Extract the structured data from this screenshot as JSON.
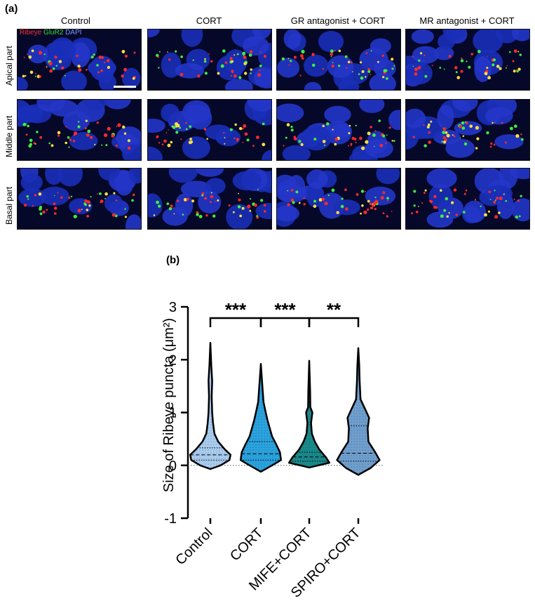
{
  "panel_a": {
    "label": "(a)",
    "columns": [
      "Control",
      "CORT",
      "GR antagonist + CORT",
      "MR antagonist + CORT"
    ],
    "rows": [
      "Apical part",
      "Middle part",
      "Basal part"
    ],
    "channel_legend": [
      {
        "text": "Ribeye",
        "color": "#ff3030"
      },
      {
        "text": "GluR2",
        "color": "#33dd33"
      },
      {
        "text": "DAPI",
        "color": "#7799ff"
      }
    ]
  },
  "panel_b": {
    "label": "(b)"
  },
  "chart_data": {
    "type": "violin",
    "ylabel": "Size of Ribeye puncta (μm²)",
    "ylim": [
      -1,
      3
    ],
    "yticks": [
      -1,
      0,
      1,
      2,
      3
    ],
    "categories": [
      "Control",
      "CORT",
      "MIFE+CORT",
      "SPIRO+CORT"
    ],
    "series": [
      {
        "category": "Control",
        "min": -0.07,
        "max": 2.32,
        "median": 0.2,
        "q1": 0.1,
        "q3": 0.33,
        "fill": "#a9cdf0",
        "profile": [
          [
            -0.07,
            0.0
          ],
          [
            0.0,
            0.45
          ],
          [
            0.1,
            0.85
          ],
          [
            0.2,
            0.9
          ],
          [
            0.3,
            0.65
          ],
          [
            0.45,
            0.35
          ],
          [
            0.6,
            0.18
          ],
          [
            0.8,
            0.12
          ],
          [
            1.0,
            0.08
          ],
          [
            1.3,
            0.06
          ],
          [
            1.6,
            0.08
          ],
          [
            1.9,
            0.04
          ],
          [
            2.32,
            0.0
          ]
        ]
      },
      {
        "category": "CORT",
        "min": -0.12,
        "max": 1.92,
        "median": 0.22,
        "q1": 0.1,
        "q3": 0.45,
        "fill": "#2aa3df",
        "profile": [
          [
            -0.12,
            0.0
          ],
          [
            0.0,
            0.5
          ],
          [
            0.1,
            0.9
          ],
          [
            0.25,
            0.85
          ],
          [
            0.4,
            0.68
          ],
          [
            0.55,
            0.5
          ],
          [
            0.7,
            0.4
          ],
          [
            0.85,
            0.3
          ],
          [
            1.0,
            0.22
          ],
          [
            1.2,
            0.12
          ],
          [
            1.5,
            0.07
          ],
          [
            1.92,
            0.0
          ]
        ]
      },
      {
        "category": "MIFE+CORT",
        "min": -0.04,
        "max": 1.98,
        "median": 0.16,
        "q1": 0.08,
        "q3": 0.25,
        "fill": "#1a8a8c",
        "profile": [
          [
            -0.04,
            0.0
          ],
          [
            0.05,
            0.9
          ],
          [
            0.15,
            0.75
          ],
          [
            0.3,
            0.45
          ],
          [
            0.45,
            0.25
          ],
          [
            0.6,
            0.12
          ],
          [
            0.8,
            0.08
          ],
          [
            1.0,
            0.14
          ],
          [
            1.1,
            0.05
          ],
          [
            1.4,
            0.04
          ],
          [
            1.98,
            0.0
          ]
        ]
      },
      {
        "category": "SPIRO+CORT",
        "min": -0.18,
        "max": 2.22,
        "median": 0.23,
        "q1": 0.08,
        "q3": 0.75,
        "fill": "#6f9fce",
        "profile": [
          [
            -0.18,
            0.0
          ],
          [
            -0.05,
            0.55
          ],
          [
            0.1,
            0.95
          ],
          [
            0.25,
            0.75
          ],
          [
            0.45,
            0.45
          ],
          [
            0.7,
            0.42
          ],
          [
            0.9,
            0.48
          ],
          [
            1.05,
            0.32
          ],
          [
            1.25,
            0.1
          ],
          [
            1.6,
            0.06
          ],
          [
            1.9,
            0.04
          ],
          [
            2.22,
            0.0
          ]
        ]
      }
    ],
    "significance": [
      {
        "from": "Control",
        "to": "CORT",
        "label": "***"
      },
      {
        "from": "CORT",
        "to": "MIFE+CORT",
        "label": "***"
      },
      {
        "from": "MIFE+CORT",
        "to": "SPIRO+CORT",
        "label": "**"
      }
    ],
    "reference_line": 0
  }
}
